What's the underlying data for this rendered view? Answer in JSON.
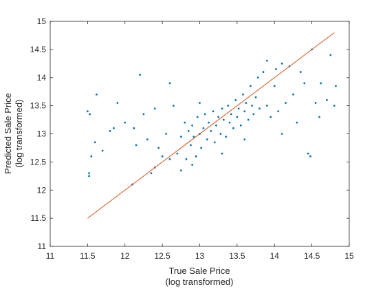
{
  "chart_data": {
    "type": "scatter",
    "title": "",
    "xlabel": [
      "True Sale Price",
      "(log transformed)"
    ],
    "ylabel": [
      "Predicted Sale Price",
      "(log transformed)"
    ],
    "xlim": [
      11,
      15
    ],
    "ylim": [
      11,
      15
    ],
    "xticks": [
      11,
      11.5,
      12,
      12.5,
      13,
      13.5,
      14,
      14.5,
      15
    ],
    "yticks": [
      11,
      11.5,
      12,
      12.5,
      13,
      13.5,
      14,
      14.5,
      15
    ],
    "xtick_labels": [
      "11",
      "11.5",
      "12",
      "12.5",
      "13",
      "13.5",
      "14",
      "14.5",
      "15"
    ],
    "ytick_labels": [
      "11",
      "11.5",
      "12",
      "12.5",
      "13",
      "13.5",
      "14",
      "14.5",
      "15"
    ],
    "grid": false,
    "box": true,
    "colors": {
      "points": "#0072BD",
      "reference_line": "#D95319",
      "axes": "#262626"
    },
    "reference_line": {
      "x": [
        11.5,
        14.8
      ],
      "y": [
        11.5,
        14.8
      ]
    },
    "points": [
      [
        11.5,
        13.4
      ],
      [
        11.52,
        12.3
      ],
      [
        11.52,
        12.25
      ],
      [
        11.53,
        13.35
      ],
      [
        11.55,
        12.6
      ],
      [
        11.6,
        12.85
      ],
      [
        11.62,
        13.7
      ],
      [
        11.7,
        12.7
      ],
      [
        11.8,
        13.05
      ],
      [
        11.85,
        13.1
      ],
      [
        11.9,
        13.55
      ],
      [
        12.0,
        13.2
      ],
      [
        12.1,
        12.1
      ],
      [
        12.12,
        13.1
      ],
      [
        12.2,
        14.05
      ],
      [
        12.25,
        13.35
      ],
      [
        12.3,
        12.9
      ],
      [
        12.35,
        12.3
      ],
      [
        12.4,
        13.45
      ],
      [
        12.45,
        12.75
      ],
      [
        12.5,
        12.6
      ],
      [
        12.55,
        13.0
      ],
      [
        12.6,
        12.55
      ],
      [
        12.65,
        13.5
      ],
      [
        12.7,
        12.65
      ],
      [
        12.75,
        12.95
      ],
      [
        12.8,
        13.2
      ],
      [
        12.82,
        12.55
      ],
      [
        12.85,
        13.05
      ],
      [
        12.88,
        12.8
      ],
      [
        12.9,
        13.15
      ],
      [
        12.92,
        12.95
      ],
      [
        12.95,
        12.6
      ],
      [
        12.97,
        13.3
      ],
      [
        13.0,
        13.0
      ],
      [
        13.02,
        12.75
      ],
      [
        13.05,
        13.1
      ],
      [
        13.07,
        13.35
      ],
      [
        13.1,
        12.9
      ],
      [
        13.12,
        13.2
      ],
      [
        13.15,
        13.05
      ],
      [
        13.18,
        13.4
      ],
      [
        13.2,
        12.85
      ],
      [
        13.22,
        13.15
      ],
      [
        13.25,
        13.3
      ],
      [
        13.28,
        13.0
      ],
      [
        13.3,
        13.45
      ],
      [
        13.32,
        13.25
      ],
      [
        13.35,
        12.95
      ],
      [
        13.38,
        13.5
      ],
      [
        13.4,
        13.2
      ],
      [
        13.42,
        13.35
      ],
      [
        13.45,
        13.1
      ],
      [
        13.48,
        13.6
      ],
      [
        13.5,
        13.3
      ],
      [
        13.52,
        13.45
      ],
      [
        13.55,
        13.15
      ],
      [
        13.58,
        13.7
      ],
      [
        13.6,
        13.4
      ],
      [
        13.62,
        13.55
      ],
      [
        13.65,
        13.25
      ],
      [
        13.68,
        13.85
      ],
      [
        13.7,
        13.5
      ],
      [
        13.72,
        13.35
      ],
      [
        13.75,
        13.65
      ],
      [
        13.78,
        14.0
      ],
      [
        13.8,
        13.45
      ],
      [
        13.85,
        14.1
      ],
      [
        13.9,
        13.5
      ],
      [
        13.95,
        13.3
      ],
      [
        14.0,
        13.85
      ],
      [
        14.02,
        14.15
      ],
      [
        14.05,
        13.4
      ],
      [
        14.1,
        13.0
      ],
      [
        14.15,
        13.55
      ],
      [
        14.2,
        14.2
      ],
      [
        14.25,
        13.7
      ],
      [
        14.3,
        13.2
      ],
      [
        14.35,
        14.1
      ],
      [
        14.4,
        13.9
      ],
      [
        14.45,
        12.65
      ],
      [
        14.48,
        12.6
      ],
      [
        14.5,
        14.5
      ],
      [
        14.55,
        13.55
      ],
      [
        14.6,
        13.3
      ],
      [
        14.62,
        13.9
      ],
      [
        14.7,
        13.6
      ],
      [
        14.75,
        14.4
      ],
      [
        14.8,
        13.5
      ],
      [
        14.82,
        13.85
      ],
      [
        12.15,
        12.8
      ],
      [
        12.4,
        12.4
      ],
      [
        12.6,
        13.9
      ],
      [
        12.9,
        12.45
      ],
      [
        13.3,
        12.65
      ],
      [
        13.6,
        12.9
      ],
      [
        13.9,
        14.3
      ],
      [
        14.1,
        14.25
      ],
      [
        12.75,
        12.35
      ],
      [
        13.0,
        13.55
      ]
    ]
  }
}
